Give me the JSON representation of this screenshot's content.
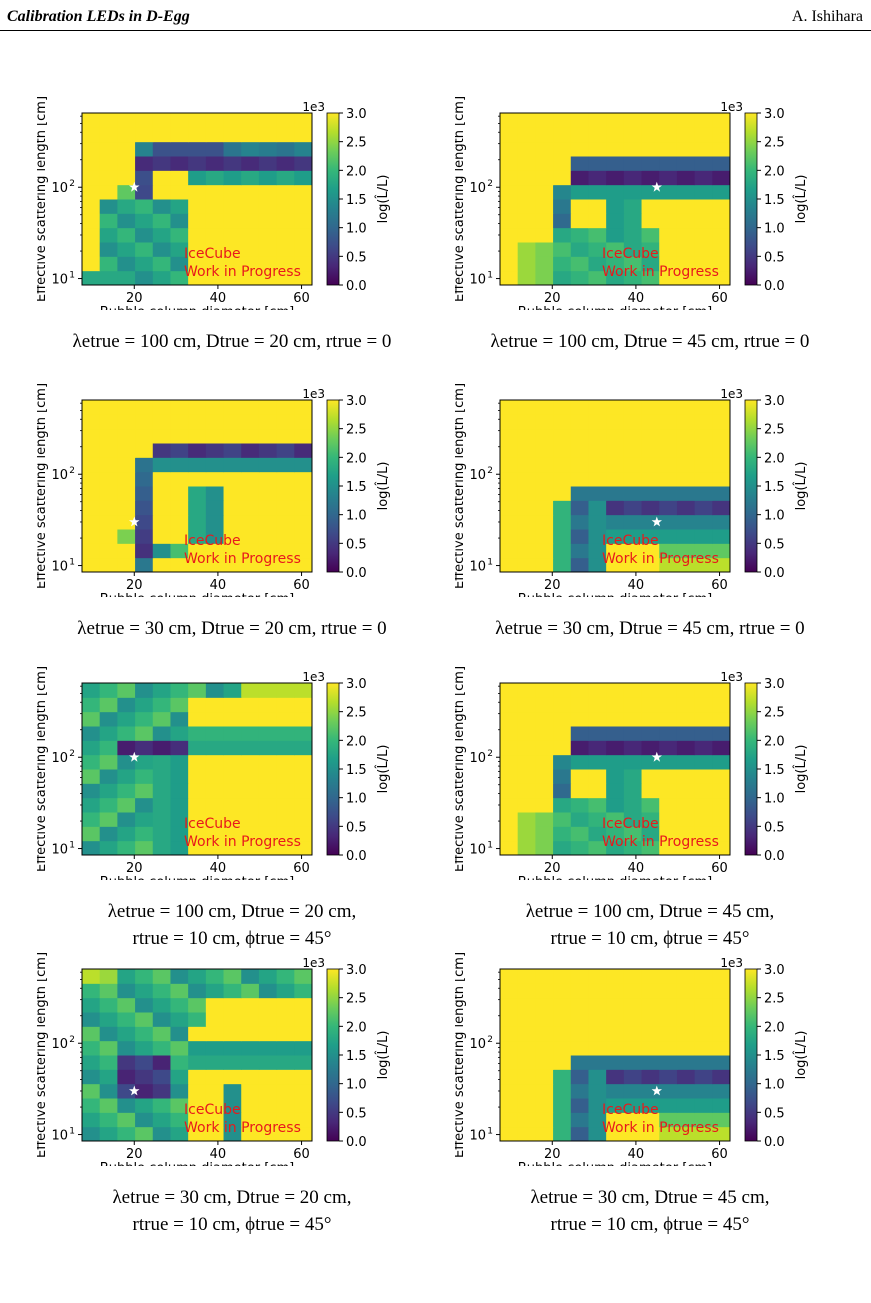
{
  "header": {
    "left": "Calibration LEDs in D-Egg",
    "right": "A. Ishihara"
  },
  "common": {
    "xlabel": "Bubble column diameter [cm]",
    "ylabel": "Effective scattering length [cm]",
    "cbar_label": "log(L̂/L)",
    "cbar_exp": "1e3",
    "cbar_ticks": [
      "0.0",
      "0.5",
      "1.0",
      "1.5",
      "2.0",
      "2.5",
      "3.0"
    ],
    "xticks": [
      "20",
      "40",
      "60"
    ],
    "yticks": [
      "10",
      "10"
    ],
    "ytick_exps": [
      "1",
      "2"
    ],
    "watermark1": "IceCube",
    "watermark2": "Work in Progress",
    "colors": {
      "low": "#440154",
      "high": "#fde725",
      "watermark": "#e8191c"
    }
  },
  "panels": [
    {
      "caption1": "λetrue = 100 cm, Dtrue = 20 cm, rtrue = 0",
      "caption2": "",
      "star": {
        "x": 20,
        "y": 100
      },
      "chart_data": {
        "type": "heatmap",
        "variant": "a"
      }
    },
    {
      "caption1": "λetrue = 100 cm, Dtrue = 45 cm, rtrue = 0",
      "caption2": "",
      "star": {
        "x": 45,
        "y": 100
      },
      "chart_data": {
        "type": "heatmap",
        "variant": "b"
      }
    },
    {
      "caption1": "λetrue = 30 cm, Dtrue = 20 cm, rtrue = 0",
      "caption2": "",
      "star": {
        "x": 20,
        "y": 30
      },
      "chart_data": {
        "type": "heatmap",
        "variant": "c"
      }
    },
    {
      "caption1": "λetrue = 30 cm, Dtrue = 45 cm, rtrue = 0",
      "caption2": "",
      "star": {
        "x": 45,
        "y": 30
      },
      "chart_data": {
        "type": "heatmap",
        "variant": "d"
      }
    },
    {
      "caption1": "λetrue = 100 cm, Dtrue = 20 cm,",
      "caption2": "rtrue = 10 cm, ϕtrue = 45°",
      "star": {
        "x": 20,
        "y": 100
      },
      "chart_data": {
        "type": "heatmap",
        "variant": "e"
      }
    },
    {
      "caption1": "λetrue = 100 cm, Dtrue = 45 cm,",
      "caption2": "rtrue = 10 cm, ϕtrue = 45°",
      "star": {
        "x": 45,
        "y": 100
      },
      "chart_data": {
        "type": "heatmap",
        "variant": "b"
      }
    },
    {
      "caption1": "λetrue = 30 cm, Dtrue = 20 cm,",
      "caption2": "rtrue = 10 cm, ϕtrue = 45°",
      "star": {
        "x": 20,
        "y": 30
      },
      "chart_data": {
        "type": "heatmap",
        "variant": "f"
      }
    },
    {
      "caption1": "λetrue = 30 cm, Dtrue = 45 cm,",
      "caption2": "rtrue = 10 cm, ϕtrue = 45°",
      "star": {
        "x": 45,
        "y": 30
      },
      "chart_data": {
        "type": "heatmap",
        "variant": "d"
      }
    }
  ]
}
